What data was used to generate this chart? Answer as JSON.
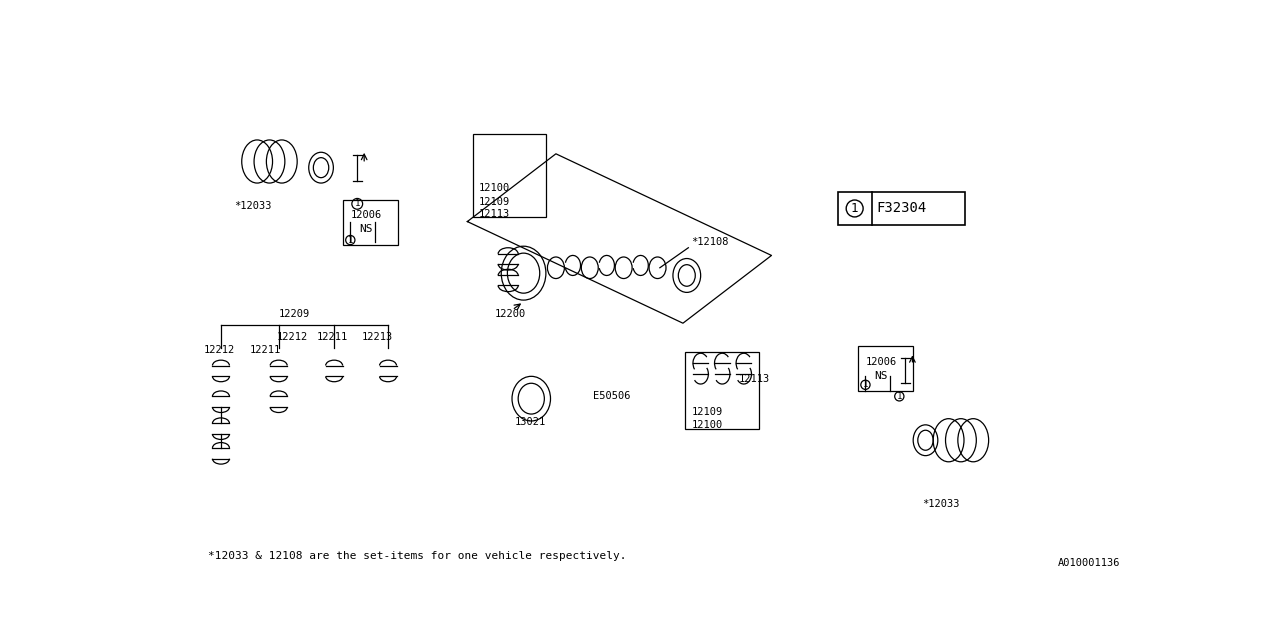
{
  "bg_color": "#ffffff",
  "line_color": "#000000",
  "footer_text": "*12033 & 12108 are the set-items for one vehicle respectively.",
  "footer_ref": "A010001136",
  "part_label_box": "F32304",
  "lw": 0.9
}
